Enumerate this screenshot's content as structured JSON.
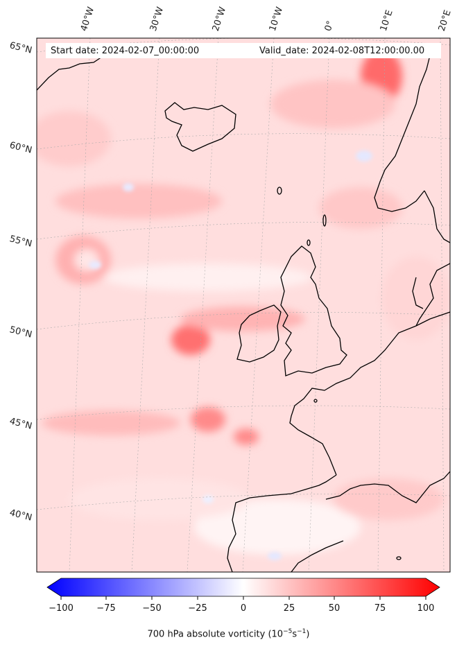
{
  "header": {
    "start_date": "Start date: 2024-02-07_00:00:00",
    "valid_date": "Valid_date: 2024-02-08T12:00:00.00"
  },
  "axes": {
    "longitude_labels": [
      "40°W",
      "30°W",
      "20°W",
      "10°W",
      "0°",
      "10°E",
      "20°E"
    ],
    "latitude_labels": [
      "65°N",
      "60°N",
      "55°N",
      "50°N",
      "45°N",
      "40°N"
    ]
  },
  "colorbar": {
    "ticks": [
      "−100",
      "−75",
      "−50",
      "−25",
      "0",
      "25",
      "50",
      "75",
      "100"
    ],
    "label_main": "700 hPa absolute vorticity (10",
    "label_sup1": "−5",
    "label_mid": "s",
    "label_sup2": "−1",
    "label_end": ")",
    "min_color": "#0000ff",
    "mid_color": "#ffffff",
    "max_color": "#ff0000"
  }
}
